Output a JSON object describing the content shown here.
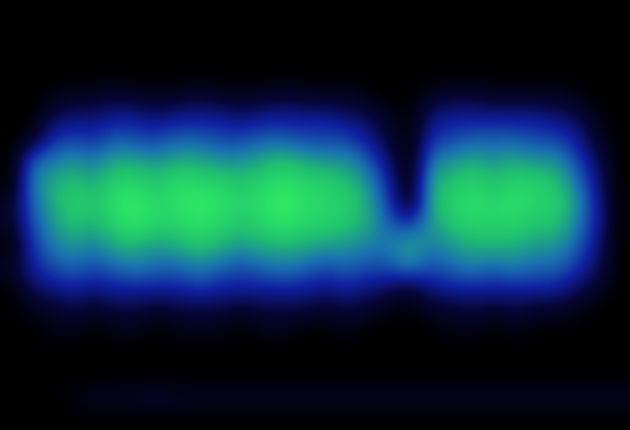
{
  "chart_data": {
    "type": "heatmap",
    "tick_labels": false,
    "cells": [
      [
        0,
        0,
        0,
        0,
        0,
        0,
        0,
        0,
        0,
        0,
        0,
        0,
        0,
        0,
        0,
        0,
        0,
        0,
        0,
        0,
        0,
        0,
        0,
        0,
        0,
        0,
        0,
        0,
        0,
        0
      ],
      [
        0,
        0,
        0,
        0,
        0,
        0,
        0,
        0,
        0,
        0,
        0,
        0,
        0,
        0,
        0,
        0,
        0,
        0,
        0,
        0,
        0,
        0,
        0,
        0,
        0,
        0,
        0,
        0,
        0,
        0
      ],
      [
        0,
        0,
        0,
        0,
        0,
        0,
        0,
        0,
        0,
        0,
        0,
        0,
        0,
        0,
        0,
        0,
        0,
        0,
        0,
        0,
        0,
        0,
        0,
        0,
        0,
        0,
        0,
        0,
        0,
        0
      ],
      [
        0,
        0,
        0,
        0,
        0,
        0,
        0,
        0,
        0,
        0,
        0,
        0,
        0,
        0,
        0,
        0,
        0,
        0,
        0,
        0,
        0,
        0,
        0,
        0,
        0,
        0,
        0,
        0,
        0,
        0
      ],
      [
        0,
        0,
        0.05,
        0.1,
        0.1,
        0.15,
        0.1,
        0.1,
        0.1,
        0.15,
        0.1,
        0.1,
        0.1,
        0.15,
        0.1,
        0.1,
        0.1,
        0.05,
        0,
        0,
        0.1,
        0.15,
        0.15,
        0.1,
        0.1,
        0.1,
        0.1,
        0.05,
        0,
        0
      ],
      [
        0,
        0,
        0.2,
        0.25,
        0.25,
        0.3,
        0.3,
        0.25,
        0.3,
        0.3,
        0.3,
        0.25,
        0.3,
        0.3,
        0.3,
        0.3,
        0.25,
        0.2,
        0.1,
        0,
        0.25,
        0.3,
        0.3,
        0.3,
        0.3,
        0.3,
        0.25,
        0.2,
        0.05,
        0
      ],
      [
        0,
        0.1,
        0.35,
        0.4,
        0.35,
        0.45,
        0.4,
        0.4,
        0.45,
        0.45,
        0.4,
        0.4,
        0.45,
        0.45,
        0.4,
        0.4,
        0.4,
        0.3,
        0.15,
        0,
        0.35,
        0.4,
        0.45,
        0.45,
        0.45,
        0.4,
        0.4,
        0.3,
        0.1,
        0
      ],
      [
        0,
        0.45,
        0.5,
        0.55,
        0.5,
        0.6,
        0.6,
        0.55,
        0.6,
        0.6,
        0.55,
        0.55,
        0.6,
        0.65,
        0.6,
        0.55,
        0.55,
        0.45,
        0.25,
        0,
        0.5,
        0.55,
        0.6,
        0.55,
        0.6,
        0.55,
        0.55,
        0.4,
        0.2,
        0
      ],
      [
        0,
        0.5,
        0.6,
        0.65,
        0.6,
        0.7,
        0.7,
        0.65,
        0.75,
        0.7,
        0.7,
        0.65,
        0.7,
        0.75,
        0.7,
        0.7,
        0.65,
        0.55,
        0.35,
        0,
        0.6,
        0.65,
        0.7,
        0.65,
        0.7,
        0.7,
        0.65,
        0.5,
        0.25,
        0
      ],
      [
        0.1,
        0.45,
        0.6,
        0.7,
        0.65,
        0.75,
        0.8,
        0.7,
        0.75,
        0.8,
        0.75,
        0.7,
        0.75,
        0.8,
        0.75,
        0.7,
        0.7,
        0.6,
        0.4,
        0.05,
        0.6,
        0.7,
        0.75,
        0.7,
        0.75,
        0.7,
        0.7,
        0.55,
        0.3,
        0
      ],
      [
        0.1,
        0.4,
        0.55,
        0.65,
        0.6,
        0.7,
        0.75,
        0.7,
        0.7,
        0.75,
        0.7,
        0.65,
        0.7,
        0.75,
        0.7,
        0.7,
        0.65,
        0.6,
        0.45,
        0.4,
        0.55,
        0.65,
        0.7,
        0.7,
        0.7,
        0.65,
        0.65,
        0.5,
        0.3,
        0
      ],
      [
        0,
        0.35,
        0.5,
        0.55,
        0.5,
        0.6,
        0.6,
        0.55,
        0.6,
        0.65,
        0.6,
        0.55,
        0.6,
        0.6,
        0.6,
        0.55,
        0.55,
        0.5,
        0.5,
        0.6,
        0.5,
        0.55,
        0.6,
        0.6,
        0.6,
        0.55,
        0.55,
        0.45,
        0.25,
        0
      ],
      [
        0.1,
        0.3,
        0.4,
        0.45,
        0.4,
        0.45,
        0.5,
        0.45,
        0.45,
        0.5,
        0.45,
        0.4,
        0.45,
        0.5,
        0.45,
        0.4,
        0.45,
        0.4,
        0.4,
        0.5,
        0.4,
        0.45,
        0.5,
        0.45,
        0.5,
        0.45,
        0.45,
        0.35,
        0.2,
        0
      ],
      [
        0,
        0.2,
        0.25,
        0.3,
        0.25,
        0.3,
        0.3,
        0.3,
        0.3,
        0.35,
        0.3,
        0.3,
        0.3,
        0.3,
        0.3,
        0.25,
        0.3,
        0.25,
        0.2,
        0.1,
        0.25,
        0.3,
        0.3,
        0.3,
        0.3,
        0.3,
        0.3,
        0.2,
        0.1,
        0
      ],
      [
        0,
        0.05,
        0.1,
        0.15,
        0.1,
        0.15,
        0.15,
        0.1,
        0.15,
        0.15,
        0.15,
        0.1,
        0.15,
        0.15,
        0.15,
        0.1,
        0.15,
        0.1,
        0.05,
        0,
        0.1,
        0.1,
        0.15,
        0.1,
        0.15,
        0.1,
        0.1,
        0.05,
        0,
        0
      ],
      [
        0,
        0,
        0.05,
        0.05,
        0,
        0.05,
        0.05,
        0,
        0.05,
        0.05,
        0.05,
        0,
        0.05,
        0.05,
        0,
        0,
        0.05,
        0,
        0,
        0,
        0,
        0.05,
        0.05,
        0,
        0.05,
        0,
        0,
        0,
        0,
        0
      ],
      [
        0,
        0,
        0,
        0,
        0,
        0,
        0,
        0,
        0,
        0,
        0,
        0,
        0,
        0,
        0,
        0,
        0,
        0,
        0,
        0,
        0,
        0,
        0,
        0,
        0,
        0,
        0,
        0,
        0,
        0
      ],
      [
        0,
        0,
        0,
        0,
        0,
        0,
        0,
        0,
        0,
        0,
        0,
        0,
        0,
        0,
        0,
        0,
        0,
        0,
        0,
        0,
        0,
        0,
        0,
        0,
        0,
        0,
        0,
        0,
        0,
        0
      ],
      [
        0,
        0,
        0,
        0.05,
        0.1,
        0.1,
        0.1,
        0.15,
        0.1,
        0.1,
        0.1,
        0.1,
        0.1,
        0.1,
        0.1,
        0.1,
        0.1,
        0.1,
        0.1,
        0.1,
        0.1,
        0.1,
        0.1,
        0.1,
        0.1,
        0.1,
        0.1,
        0.1,
        0.1,
        0.1
      ],
      [
        0,
        0,
        0,
        0,
        0,
        0,
        0,
        0,
        0,
        0,
        0,
        0,
        0,
        0,
        0,
        0,
        0,
        0,
        0,
        0,
        0,
        0,
        0,
        0,
        0,
        0,
        0,
        0,
        0,
        0
      ]
    ]
  }
}
